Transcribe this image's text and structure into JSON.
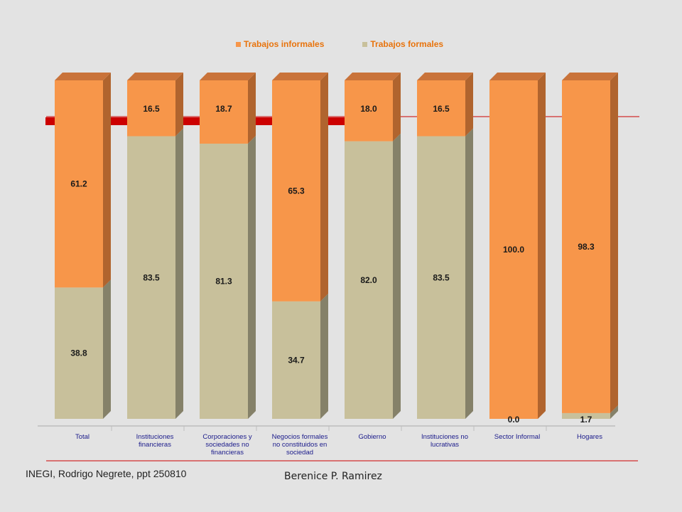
{
  "chart_data": {
    "type": "bar",
    "stacked": true,
    "percent": true,
    "categories": [
      "Total",
      "Instituciones financieras",
      "Corporaciones y sociedades no financieras",
      "Negocios formales no constituidos en sociedad",
      "Gobierno",
      "Instituciones no lucrativas",
      "Sector Informal",
      "Hogares"
    ],
    "category_label_lines": [
      [
        "Total"
      ],
      [
        "Instituciones",
        "financieras"
      ],
      [
        "Corporaciones y",
        "sociedades no",
        "financieras"
      ],
      [
        "Negocios formales",
        "no constituidos en",
        "sociedad"
      ],
      [
        "Gobierno"
      ],
      [
        "Instituciones no",
        "lucrativas"
      ],
      [
        "Sector Informal"
      ],
      [
        "Hogares"
      ]
    ],
    "series": [
      {
        "name": "Trabajos formales",
        "values": [
          38.8,
          83.5,
          81.3,
          34.7,
          82.0,
          83.5,
          0.0,
          1.7
        ],
        "labels": [
          "38.8",
          "83.5",
          "81.3",
          "34.7",
          "82.0",
          "83.5",
          "0.0",
          "1.7"
        ],
        "color": "#c8c09b"
      },
      {
        "name": "Trabajos informales",
        "values": [
          61.2,
          16.5,
          18.7,
          65.3,
          18.0,
          16.5,
          100.0,
          98.3
        ],
        "labels": [
          "61.2",
          "16.5",
          "18.7",
          "65.3",
          "18.0",
          "16.5",
          "100.0",
          "98.3"
        ],
        "color": "#f7964a"
      }
    ],
    "ylim": [
      0,
      100
    ],
    "legend_position": "top",
    "colors": {
      "formal": "#c8c09b",
      "informal": "#f7964a",
      "reference_line": "#cc0000"
    }
  },
  "legend": {
    "informal": "Trabajos informales",
    "formal": "Trabajos formales"
  },
  "footer": {
    "source": "INEGI, Rodrigo Negrete, ppt 250810",
    "author": "Berenice P. Ramirez"
  }
}
